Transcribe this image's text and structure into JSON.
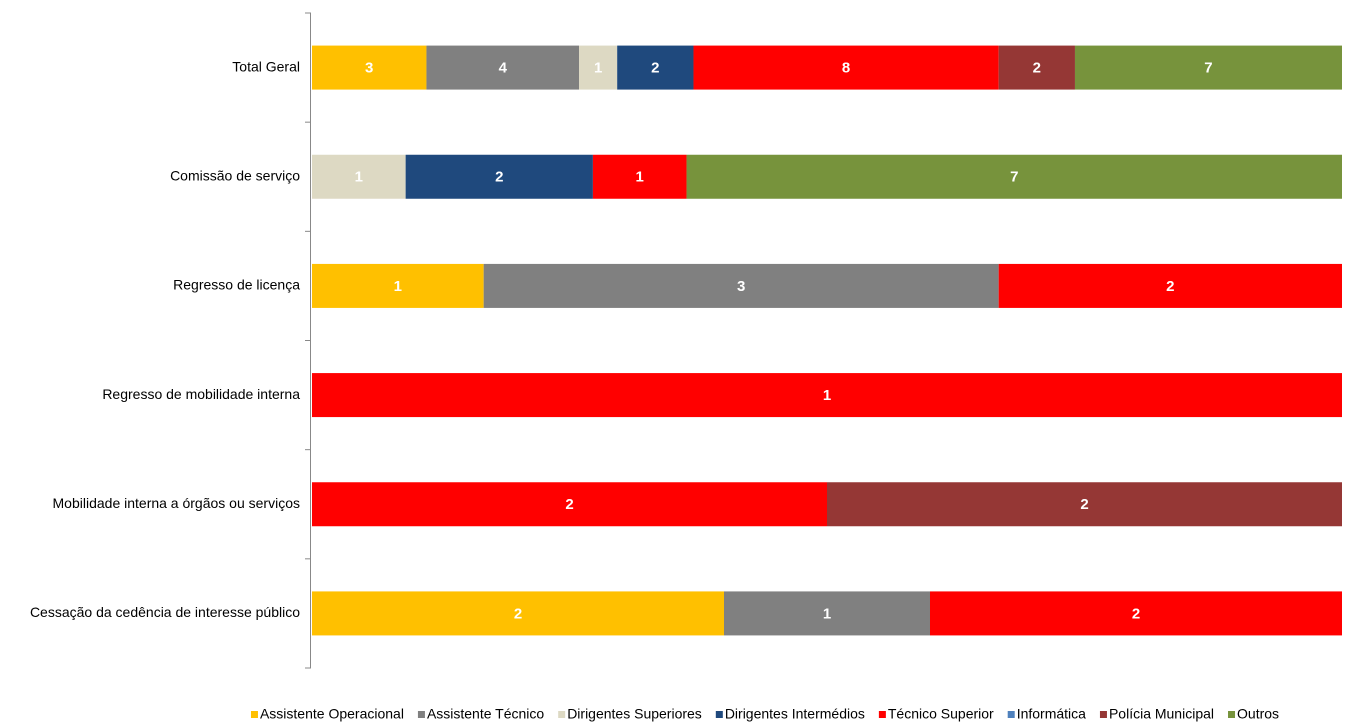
{
  "chart_data": {
    "type": "bar",
    "orientation": "horizontal",
    "stacked": "percent",
    "categories": [
      "Total Geral",
      "Comissão de serviço",
      "Regresso de licença",
      "Regresso de mobilidade interna",
      "Mobilidade interna a órgãos ou serviços",
      "Cessação da cedência de interesse público"
    ],
    "series": [
      {
        "name": "Assistente Operacional",
        "color": "#ffc000",
        "values": [
          3,
          null,
          1,
          null,
          null,
          2
        ]
      },
      {
        "name": "Assistente Técnico",
        "color": "#808080",
        "values": [
          4,
          null,
          3,
          null,
          null,
          1
        ]
      },
      {
        "name": "Dirigentes Superiores",
        "color": "#ddd9c3",
        "values": [
          1,
          1,
          null,
          null,
          null,
          null
        ]
      },
      {
        "name": "Dirigentes Intermédios",
        "color": "#1f497d",
        "values": [
          2,
          2,
          null,
          null,
          null,
          null
        ]
      },
      {
        "name": "Técnico Superior",
        "color": "#ff0000",
        "values": [
          8,
          1,
          2,
          1,
          2,
          2
        ]
      },
      {
        "name": "Informática",
        "color": "#4f81bd",
        "values": [
          null,
          null,
          null,
          null,
          null,
          null
        ]
      },
      {
        "name": "Polícia Municipal",
        "color": "#953735",
        "values": [
          2,
          null,
          null,
          null,
          2,
          null
        ]
      },
      {
        "name": "Outros",
        "color": "#77933c",
        "values": [
          7,
          7,
          null,
          null,
          null,
          null
        ]
      }
    ],
    "legend": "bottom"
  }
}
